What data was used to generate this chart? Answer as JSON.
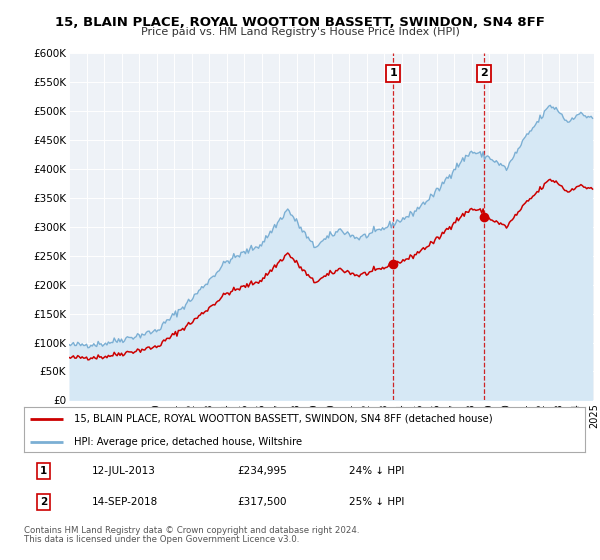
{
  "title": "15, BLAIN PLACE, ROYAL WOOTTON BASSETT, SWINDON, SN4 8FF",
  "subtitle": "Price paid vs. HM Land Registry's House Price Index (HPI)",
  "legend_line1": "15, BLAIN PLACE, ROYAL WOOTTON BASSETT, SWINDON, SN4 8FF (detached house)",
  "legend_line2": "HPI: Average price, detached house, Wiltshire",
  "sale1_date": "12-JUL-2013",
  "sale1_price": 234995,
  "sale1_hpi": "24% ↓ HPI",
  "sale2_date": "14-SEP-2018",
  "sale2_price": 317500,
  "sale2_hpi": "25% ↓ HPI",
  "footnote1": "Contains HM Land Registry data © Crown copyright and database right 2024.",
  "footnote2": "This data is licensed under the Open Government Licence v3.0.",
  "red_color": "#cc0000",
  "blue_color": "#7bafd4",
  "blue_fill": "#d6e8f5",
  "bg_color": "#eef2f7",
  "ylim": [
    0,
    600000
  ],
  "yticks": [
    0,
    50000,
    100000,
    150000,
    200000,
    250000,
    300000,
    350000,
    400000,
    450000,
    500000,
    550000,
    600000
  ],
  "xlim_start": 1995,
  "xlim_end": 2025,
  "hpi_anchors_years": [
    1995.0,
    1997.0,
    2000.0,
    2002.0,
    2004.0,
    2006.0,
    2007.5,
    2009.0,
    2010.5,
    2011.5,
    2012.5,
    2013.5,
    2014.5,
    2016.0,
    2017.0,
    2018.0,
    2019.0,
    2020.0,
    2021.0,
    2022.0,
    2022.5,
    2023.0,
    2023.5,
    2024.0,
    2024.8
  ],
  "hpi_anchors_vals": [
    95000,
    98000,
    120000,
    175000,
    240000,
    270000,
    330000,
    265000,
    295000,
    280000,
    290000,
    305000,
    320000,
    360000,
    400000,
    430000,
    420000,
    400000,
    450000,
    490000,
    510000,
    500000,
    480000,
    495000,
    490000
  ]
}
